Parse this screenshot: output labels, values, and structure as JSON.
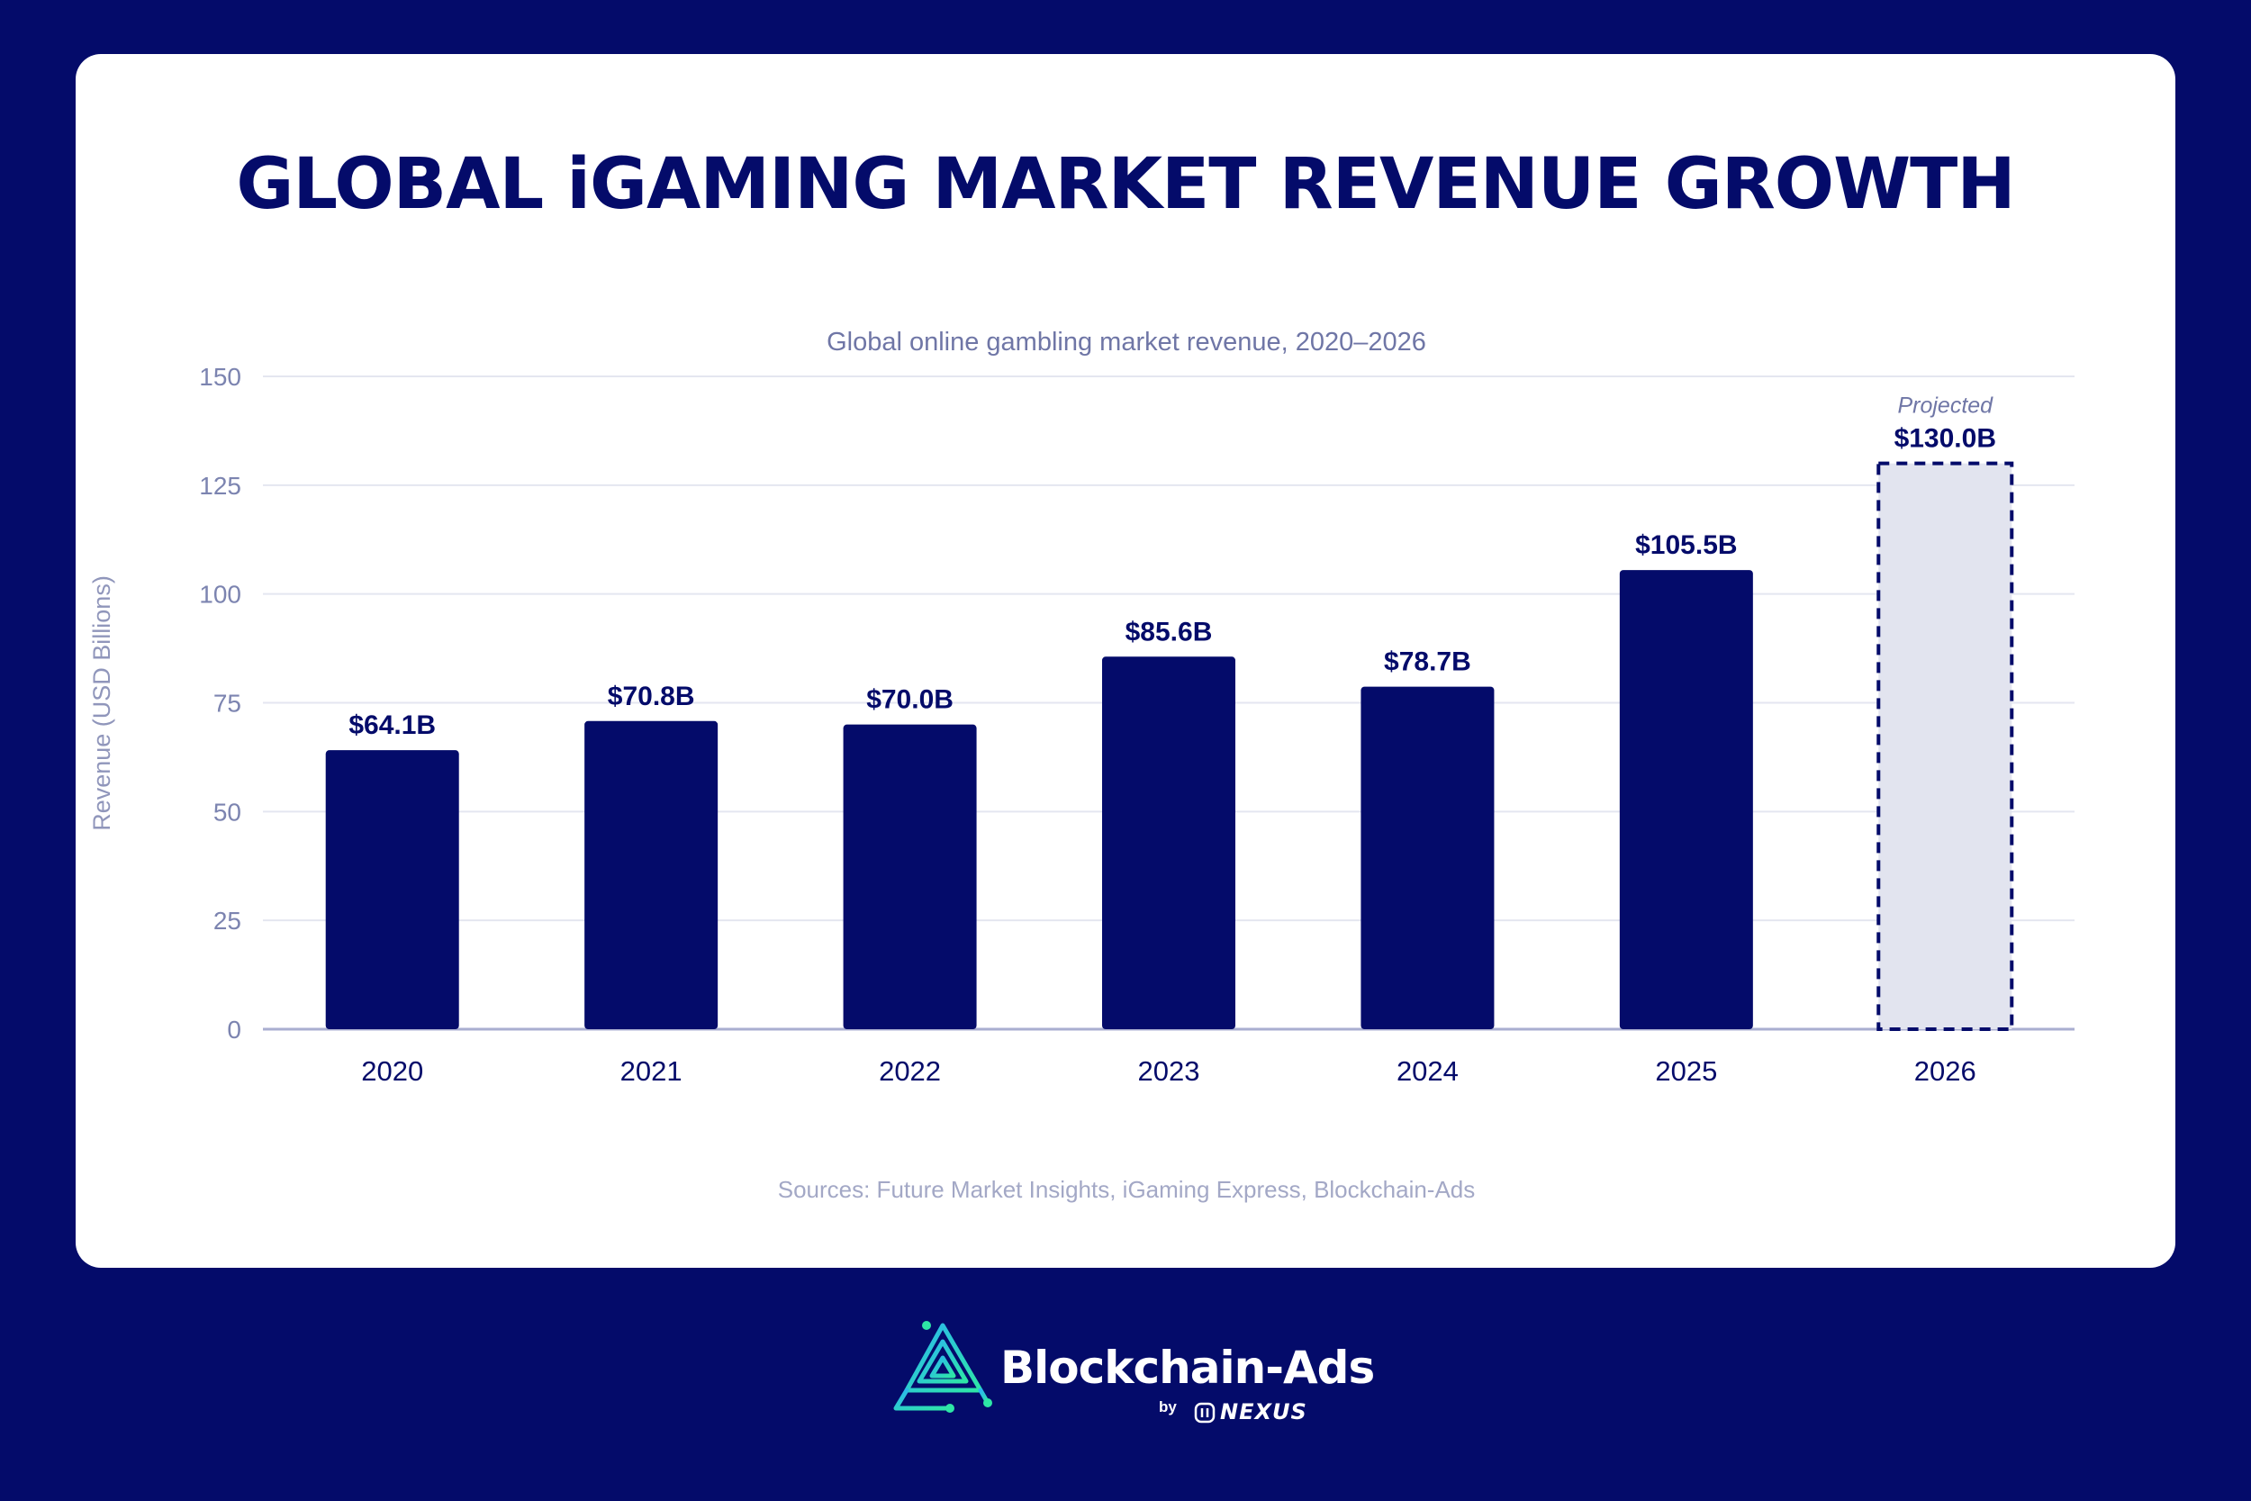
{
  "title": "GLOBAL iGAMING MARKET REVENUE GROWTH",
  "footer": {
    "brand_name": "Blockchain-Ads",
    "by": "by",
    "partner": "NEXUS",
    "logo_icon": "blockchain-ads-logo-icon"
  },
  "colors": {
    "background": "#040b6a",
    "bar": "#040b6a",
    "projected_fill": "#e2e4ef",
    "grid": "#e4e6f0",
    "logo_accent": "#2ee6a6"
  },
  "chart_data": {
    "type": "bar",
    "title": "Global online gambling market revenue, 2020–2026",
    "ylabel": "Revenue (USD Billions)",
    "xlabel": "",
    "categories": [
      "2020",
      "2021",
      "2022",
      "2023",
      "2024",
      "2025",
      "2026"
    ],
    "values": [
      64.1,
      70.8,
      70.0,
      85.6,
      78.7,
      105.5,
      130.0
    ],
    "value_labels": [
      "$64.1B",
      "$70.8B",
      "$70.0B",
      "$85.6B",
      "$78.7B",
      "$105.5B",
      "$130.0B"
    ],
    "projected": [
      false,
      false,
      false,
      false,
      false,
      false,
      true
    ],
    "projected_label": "Projected",
    "ylim": [
      0,
      150
    ],
    "yticks": [
      0,
      25,
      50,
      75,
      100,
      125,
      150
    ],
    "grid": true,
    "source": "Sources: Future Market Insights, iGaming Express, Blockchain-Ads"
  }
}
